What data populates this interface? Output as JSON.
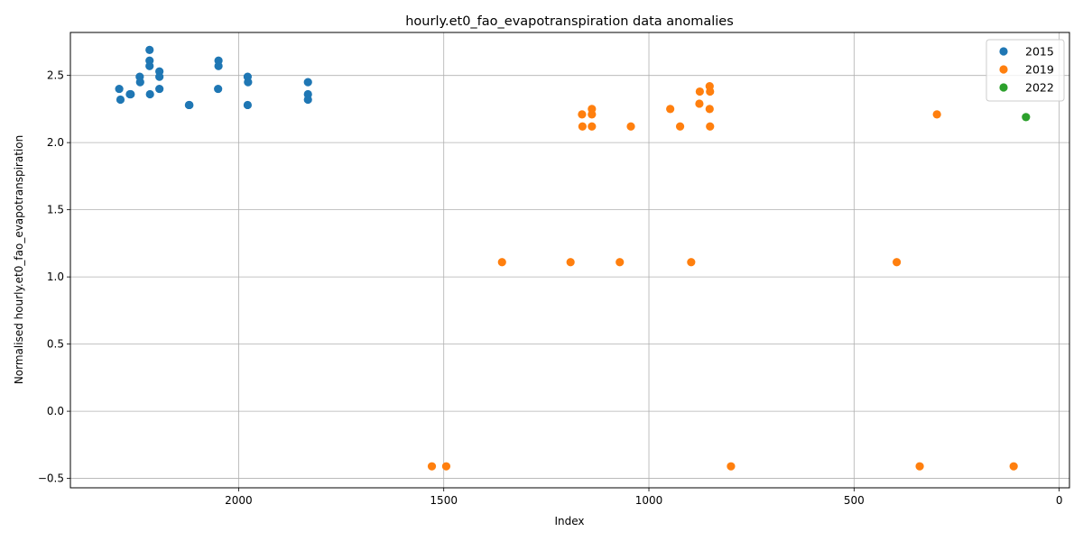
{
  "chart_data": {
    "type": "scatter",
    "title": "hourly.et0_fao_evapotranspiration data anomalies",
    "xlabel": "Index",
    "ylabel": "Normalised hourly.et0_fao_evapotranspiration",
    "xlim": [
      2410,
      -25
    ],
    "ylim": [
      -0.57,
      2.82
    ],
    "xticks": [
      2000,
      1500,
      1000,
      500,
      0
    ],
    "xtick_labels": [
      "2000",
      "1500",
      "1000",
      "500",
      "0"
    ],
    "yticks": [
      -0.5,
      0.0,
      0.5,
      1.0,
      1.5,
      2.0,
      2.5
    ],
    "ytick_labels": [
      "−0.5",
      "0.0",
      "0.5",
      "1.0",
      "1.5",
      "2.0",
      "2.5"
    ],
    "grid": true,
    "x_axis_inverted": true,
    "legend_position": "top-right",
    "series": [
      {
        "name": "2015",
        "color": "#1f77b4",
        "points": [
          [
            2291,
            2.4
          ],
          [
            2288,
            2.32
          ],
          [
            2265,
            2.36
          ],
          [
            2263,
            2.36
          ],
          [
            2241,
            2.49
          ],
          [
            2240,
            2.45
          ],
          [
            2217,
            2.69
          ],
          [
            2217,
            2.61
          ],
          [
            2217,
            2.57
          ],
          [
            2216,
            2.36
          ],
          [
            2193,
            2.53
          ],
          [
            2193,
            2.49
          ],
          [
            2193,
            2.4
          ],
          [
            2121,
            2.28
          ],
          [
            2120,
            2.28
          ],
          [
            2049,
            2.61
          ],
          [
            2049,
            2.57
          ],
          [
            2050,
            2.4
          ],
          [
            1978,
            2.49
          ],
          [
            1977,
            2.45
          ],
          [
            1978,
            2.28
          ],
          [
            1831,
            2.45
          ],
          [
            1831,
            2.36
          ],
          [
            1831,
            2.32
          ]
        ]
      },
      {
        "name": "2019",
        "color": "#ff7f0e",
        "points": [
          [
            1529,
            -0.41
          ],
          [
            1494,
            -0.41
          ],
          [
            1358,
            1.11
          ],
          [
            1191,
            1.11
          ],
          [
            1163,
            2.21
          ],
          [
            1162,
            2.12
          ],
          [
            1139,
            2.25
          ],
          [
            1139,
            2.21
          ],
          [
            1139,
            2.12
          ],
          [
            1071,
            1.11
          ],
          [
            1044,
            2.12
          ],
          [
            948,
            2.25
          ],
          [
            924,
            2.12
          ],
          [
            897,
            1.11
          ],
          [
            876,
            2.38
          ],
          [
            877,
            2.29
          ],
          [
            852,
            2.42
          ],
          [
            851,
            2.38
          ],
          [
            852,
            2.25
          ],
          [
            851,
            2.12
          ],
          [
            800,
            -0.41
          ],
          [
            396,
            1.11
          ],
          [
            340,
            -0.41
          ],
          [
            298,
            2.21
          ],
          [
            111,
            -0.41
          ]
        ]
      },
      {
        "name": "2022",
        "color": "#2ca02c",
        "points": [
          [
            81,
            2.19
          ]
        ]
      }
    ]
  }
}
